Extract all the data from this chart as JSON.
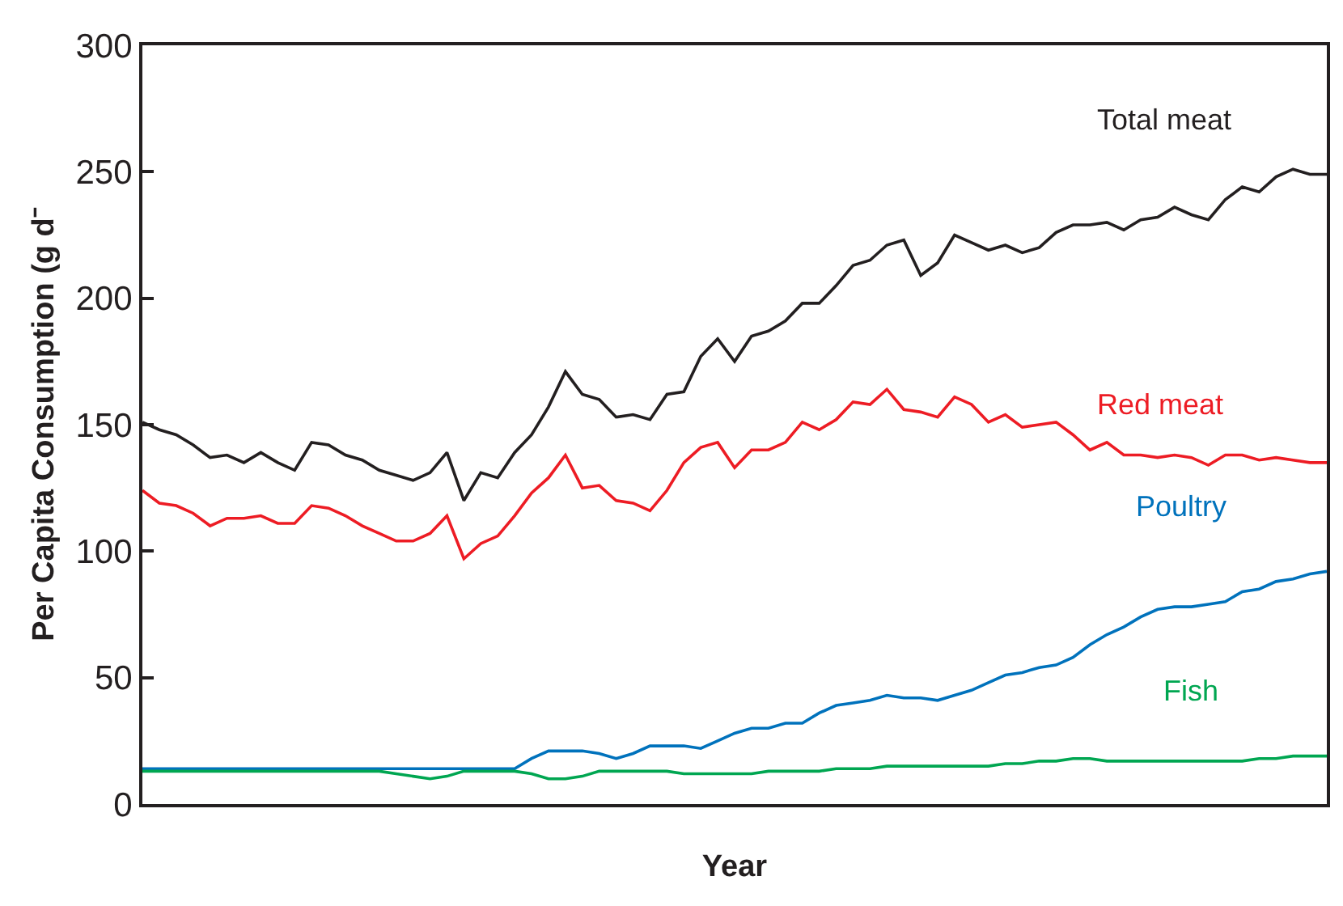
{
  "chart_data": {
    "type": "line",
    "xlabel": "Year",
    "ylabel": "Per Capita Consumption (g d⁻",
    "categories": [
      null,
      null,
      null,
      null,
      null,
      null,
      null,
      null,
      null,
      null,
      null,
      null,
      null,
      null,
      null,
      null,
      null,
      null,
      null,
      null,
      null,
      null,
      null,
      null,
      null,
      null,
      null,
      null,
      null,
      null,
      null,
      null,
      null,
      null,
      null,
      null,
      null,
      null,
      null,
      null,
      null,
      null,
      null,
      null,
      null,
      null,
      null,
      null,
      null,
      null,
      null,
      null,
      null,
      null,
      null,
      null,
      null,
      null,
      null,
      null,
      null,
      null,
      null,
      null,
      null,
      null,
      null,
      null,
      null,
      null,
      null
    ],
    "ylim": [
      0,
      300
    ],
    "yticks": [
      0,
      50,
      100,
      150,
      200,
      250,
      300
    ],
    "tick_labels": "y",
    "legend": false,
    "marker": "none",
    "line_style": "solid",
    "series": [
      {
        "name": "Total meat",
        "color": "#231f20",
        "values": [
          151,
          148,
          146,
          142,
          137,
          138,
          135,
          139,
          135,
          132,
          143,
          142,
          138,
          136,
          132,
          130,
          128,
          131,
          139,
          120,
          131,
          129,
          139,
          146,
          157,
          171,
          162,
          160,
          153,
          154,
          152,
          162,
          163,
          177,
          184,
          175,
          185,
          187,
          191,
          198,
          198,
          205,
          213,
          215,
          221,
          223,
          209,
          214,
          225,
          222,
          219,
          221,
          218,
          220,
          226,
          229,
          229,
          230,
          227,
          231,
          232,
          236,
          233,
          231,
          239,
          244,
          242,
          248,
          251,
          249,
          249
        ]
      },
      {
        "name": "Red meat",
        "color": "#ed1c24",
        "values": [
          124,
          119,
          118,
          115,
          110,
          113,
          113,
          114,
          111,
          111,
          118,
          117,
          114,
          110,
          107,
          104,
          104,
          107,
          114,
          97,
          103,
          106,
          114,
          123,
          129,
          138,
          125,
          126,
          120,
          119,
          116,
          124,
          135,
          141,
          143,
          133,
          140,
          140,
          143,
          151,
          148,
          152,
          159,
          158,
          164,
          156,
          155,
          153,
          161,
          158,
          151,
          154,
          149,
          150,
          151,
          146,
          140,
          143,
          138,
          138,
          137,
          138,
          137,
          134,
          138,
          138,
          136,
          137,
          136,
          135,
          135
        ]
      },
      {
        "name": "Poultry",
        "color": "#0072bc",
        "values": [
          14,
          14,
          14,
          14,
          14,
          14,
          14,
          14,
          14,
          14,
          14,
          14,
          14,
          14,
          14,
          14,
          14,
          14,
          14,
          14,
          14,
          14,
          14,
          18,
          21,
          21,
          21,
          20,
          18,
          20,
          23,
          23,
          23,
          22,
          25,
          28,
          30,
          30,
          32,
          32,
          36,
          39,
          40,
          41,
          43,
          42,
          42,
          41,
          43,
          45,
          48,
          51,
          52,
          54,
          55,
          58,
          63,
          67,
          70,
          74,
          77,
          78,
          78,
          79,
          80,
          84,
          85,
          88,
          89,
          91,
          92
        ]
      },
      {
        "name": "Fish",
        "color": "#00a651",
        "values": [
          13,
          13,
          13,
          13,
          13,
          13,
          13,
          13,
          13,
          13,
          13,
          13,
          13,
          13,
          13,
          12,
          11,
          10,
          11,
          13,
          13,
          13,
          13,
          12,
          10,
          10,
          11,
          13,
          13,
          13,
          13,
          13,
          12,
          12,
          12,
          12,
          12,
          13,
          13,
          13,
          13,
          14,
          14,
          14,
          15,
          15,
          15,
          15,
          15,
          15,
          15,
          16,
          16,
          17,
          17,
          18,
          18,
          17,
          17,
          17,
          17,
          17,
          17,
          17,
          17,
          17,
          18,
          18,
          19,
          19,
          19
        ]
      }
    ]
  }
}
